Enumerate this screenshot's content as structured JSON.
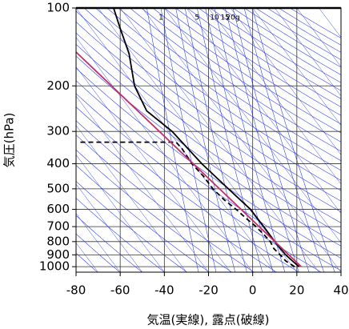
{
  "chart_data": {
    "type": "sounding",
    "xlabel": "気温(実線), 露点(破線)",
    "ylabel": "気圧(hPa)",
    "xlim": [
      -80,
      40
    ],
    "xticks": [
      -80,
      -60,
      -40,
      -20,
      0,
      20,
      40
    ],
    "ylim": [
      1050,
      100
    ],
    "yticks": [
      100,
      200,
      300,
      400,
      500,
      600,
      700,
      800,
      900,
      1000
    ],
    "log_y": true,
    "grid": true,
    "mixing_ratio_ticks": [
      1,
      5,
      10,
      15,
      {
        "value": 20,
        "label": "20g"
      }
    ],
    "series": [
      {
        "color": "#000000",
        "dash": false,
        "x": [
          21,
          18,
          15,
          12.5,
          10,
          5,
          -1,
          -11,
          -23,
          -36.5,
          -48,
          -53.5,
          -56,
          -60,
          -63
        ],
        "values": [
          1000,
          950,
          900,
          850,
          800,
          700,
          600,
          500,
          400,
          300,
          250,
          200,
          150,
          120,
          100
        ]
      },
      {
        "color": "#000000",
        "dash": true,
        "x": [
          19,
          15,
          12.5,
          9.5,
          8,
          5,
          1.5,
          -3,
          -7.5,
          -13,
          -18,
          -22,
          -27.5,
          -32,
          -34.7,
          -79
        ],
        "values": [
          1000,
          950,
          900,
          850,
          800,
          750,
          700,
          650,
          600,
          550,
          500,
          450,
          400,
          350,
          330,
          330
        ]
      },
      {
        "color": "#c0306a",
        "dash": false,
        "x": [
          22,
          -80
        ],
        "values": [
          1000,
          148
        ]
      }
    ]
  }
}
